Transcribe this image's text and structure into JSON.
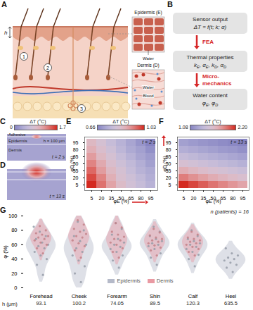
{
  "figure": {
    "A": {
      "label": "A",
      "h": "h",
      "markers": [
        "1",
        "2",
        "3"
      ],
      "insets": [
        {
          "title": "Epidermis (E)",
          "labels": [
            "Water"
          ]
        },
        {
          "title": "Dermis (D)",
          "labels": [
            "Water",
            "Blood"
          ]
        }
      ]
    },
    "B": {
      "label": "B",
      "boxes": [
        {
          "title": "Sensor output",
          "formula": [
            [
              "ΔT = f(t; k; α)",
              ""
            ]
          ]
        },
        {
          "title": "Thermal properties",
          "formula": [
            [
              "k",
              "E"
            ],
            [
              ", α",
              "E"
            ],
            [
              ", k",
              "D"
            ],
            [
              ", α",
              "D"
            ]
          ]
        },
        {
          "title": "Water content",
          "formula": [
            [
              "φ",
              "E"
            ],
            [
              ", φ",
              "D"
            ]
          ]
        }
      ],
      "arrows": [
        "FEA",
        "Micro-mechanics"
      ]
    },
    "C": {
      "label": "C",
      "colorbar": {
        "label": "ΔT (°C)",
        "range": [
          0,
          1.7
        ],
        "ticks": [
          0,
          1.7
        ],
        "colors": [
          "#8784c2",
          "#f1eff6",
          "#d42a20"
        ]
      },
      "layers": [
        "Adhesive",
        "Epidermis",
        "Dermis"
      ],
      "thickness": "h = 100 μm",
      "annotation": "t = 2 s"
    },
    "D": {
      "label": "D",
      "annotation": "t = 13 s"
    }
  },
  "chart_data": [
    {
      "type": "heatmap",
      "label": "E",
      "annotation": "t = 2 s",
      "x_label": "φE (%)",
      "y_label": "φD (%)",
      "x": [
        5,
        20,
        35,
        50,
        65,
        80,
        95
      ],
      "y": [
        5,
        20,
        35,
        50,
        65,
        80,
        95
      ],
      "xticks": [
        5,
        20,
        35,
        50,
        65,
        80,
        95
      ],
      "yticks": [
        5,
        20,
        35,
        50,
        65,
        80,
        95
      ],
      "values": [
        [
          1.03,
          0.96,
          0.9,
          0.85,
          0.81,
          0.78,
          0.75
        ],
        [
          1.0,
          0.94,
          0.88,
          0.83,
          0.8,
          0.77,
          0.74
        ],
        [
          0.97,
          0.91,
          0.86,
          0.82,
          0.78,
          0.75,
          0.73
        ],
        [
          0.94,
          0.89,
          0.84,
          0.8,
          0.77,
          0.74,
          0.71
        ],
        [
          0.91,
          0.86,
          0.82,
          0.78,
          0.75,
          0.72,
          0.7
        ],
        [
          0.88,
          0.84,
          0.8,
          0.76,
          0.73,
          0.71,
          0.68
        ],
        [
          0.86,
          0.82,
          0.78,
          0.75,
          0.72,
          0.69,
          0.66
        ]
      ],
      "colorbar": {
        "label": "ΔT (°C)",
        "range": [
          0.66,
          1.03
        ],
        "ticks": [
          0.66,
          1.03
        ],
        "colors": [
          "#8784c2",
          "#f1eff6",
          "#d42a20"
        ]
      }
    },
    {
      "type": "heatmap",
      "label": "F",
      "annotation": "t = 13 s",
      "x_label": "φE (%)",
      "y_label": "φD (%)",
      "x": [
        5,
        20,
        35,
        50,
        65,
        80,
        95
      ],
      "y": [
        5,
        20,
        35,
        50,
        65,
        80,
        95
      ],
      "xticks": [
        5,
        20,
        35,
        50,
        65,
        80,
        95
      ],
      "yticks": [
        5,
        20,
        35,
        50,
        65,
        80,
        95
      ],
      "values": [
        [
          2.2,
          2.12,
          2.05,
          1.98,
          1.92,
          1.86,
          1.8
        ],
        [
          1.95,
          1.88,
          1.82,
          1.76,
          1.71,
          1.66,
          1.61
        ],
        [
          1.75,
          1.69,
          1.64,
          1.59,
          1.55,
          1.51,
          1.47
        ],
        [
          1.58,
          1.53,
          1.49,
          1.45,
          1.41,
          1.38,
          1.34
        ],
        [
          1.44,
          1.4,
          1.36,
          1.33,
          1.3,
          1.27,
          1.24
        ],
        [
          1.32,
          1.29,
          1.26,
          1.23,
          1.2,
          1.18,
          1.15
        ],
        [
          1.23,
          1.2,
          1.17,
          1.15,
          1.12,
          1.1,
          1.08
        ]
      ],
      "colorbar": {
        "label": "ΔT (°C)",
        "range": [
          1.08,
          2.2
        ],
        "ticks": [
          1.08,
          {
            "value": 2.2,
            "label": "2.20"
          }
        ],
        "colors": [
          "#8784c2",
          "#f1eff6",
          "#d42a20"
        ]
      }
    },
    {
      "type": "violin",
      "label": "G",
      "annotation": "n (patients) = 16",
      "y_label": "φ (%)",
      "ylim": [
        0,
        100
      ],
      "yticks": [
        0,
        20,
        40,
        60,
        80,
        100
      ],
      "categories": [
        "Forehead",
        "Cheek",
        "Forearm",
        "Shin",
        "Calf",
        "Heel"
      ],
      "h_label": "h (μm)",
      "h": [
        93.1,
        100.2,
        74.05,
        89.5,
        120.3,
        635.5
      ],
      "legend": "bottom",
      "series": [
        {
          "name": "Epidermis",
          "color": "#b5bac9",
          "values": [
            [
              18,
              32,
              40,
              45,
              50,
              55,
              58,
              60,
              63,
              68,
              72,
              78,
              85
            ],
            [
              8,
              20,
              30,
              38,
              45,
              50,
              55,
              60,
              65,
              72,
              80,
              92
            ],
            [
              28,
              38,
              45,
              50,
              54,
              57,
              60,
              63,
              68,
              74,
              82,
              90
            ],
            [
              32,
              42,
              48,
              54,
              58,
              60,
              62,
              65,
              68,
              72,
              78,
              85
            ],
            [
              30,
              40,
              46,
              50,
              54,
              57,
              60,
              62,
              65,
              68,
              72,
              80
            ],
            [
              22,
              28,
              32,
              35,
              38,
              40,
              42,
              45,
              48,
              55
            ]
          ]
        },
        {
          "name": "Dermis",
          "color": "#e99aa3",
          "values": [
            [
              48,
              55,
              60,
              63,
              66,
              68,
              70,
              72,
              74,
              76,
              80,
              86
            ],
            [
              42,
              52,
              58,
              62,
              66,
              70,
              72,
              75,
              78,
              82,
              88,
              94
            ],
            [
              42,
              50,
              55,
              60,
              63,
              66,
              68,
              71,
              74,
              78,
              84,
              90
            ],
            [
              45,
              52,
              56,
              59,
              62,
              64,
              66,
              68,
              70,
              73,
              77,
              82
            ],
            [
              45,
              50,
              54,
              57,
              60,
              62,
              64,
              66,
              68,
              70,
              74,
              78
            ],
            []
          ]
        }
      ]
    }
  ]
}
